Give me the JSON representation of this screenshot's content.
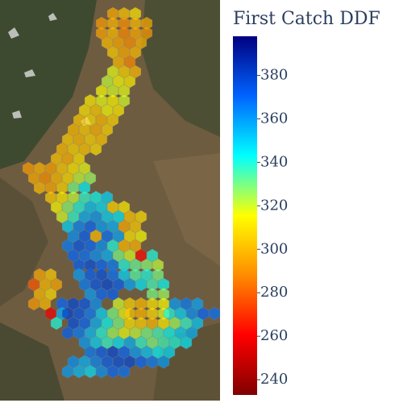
{
  "colorbar": {
    "title": "First Catch DDF",
    "range": [
      233,
      398
    ],
    "ticks": [
      240,
      260,
      280,
      300,
      320,
      340,
      360,
      380
    ],
    "colorscale": [
      "#800000",
      "#ff0000",
      "#ff8c00",
      "#ffff00",
      "#00ffff",
      "#0064ff",
      "#000080"
    ]
  },
  "hexbins": [
    [
      296,
      302,
      310
    ],
    [
      292,
      298,
      290,
      300,
      296
    ],
    [
      294,
      300,
      288,
      296,
      292
    ],
    [
      300,
      296,
      290,
      298
    ],
    [
      304,
      296,
      300
    ],
    [
      300,
      288
    ],
    [
      318,
      306,
      300
    ],
    [
      322,
      316,
      312
    ],
    [
      316,
      320,
      318
    ],
    [
      312,
      318,
      314,
      320
    ],
    [
      310,
      304,
      316,
      312
    ],
    [
      302,
      308,
      300,
      306
    ],
    [
      300,
      304,
      298,
      306
    ],
    [
      304,
      300,
      306,
      302
    ],
    [
      300,
      306,
      302,
      308
    ],
    [
      302,
      298,
      310
    ],
    [
      292,
      298,
      294,
      304,
      312,
      318
    ],
    [
      296,
      290,
      300,
      308,
      322,
      326
    ],
    [
      300,
      296,
      306,
      330,
      344
    ],
    [
      304,
      312,
      322,
      338,
      342,
      350
    ],
    [
      316,
      328,
      340,
      352,
      348,
      306,
      312
    ],
    [
      320,
      338,
      356,
      360,
      350,
      346,
      302,
      308
    ],
    [
      350,
      364,
      370,
      360,
      356,
      296,
      304
    ],
    [
      362,
      372,
      300,
      368,
      358,
      310,
      316
    ],
    [
      366,
      374,
      370,
      362,
      340,
      300,
      298
    ],
    [
      370,
      368,
      362,
      356,
      330,
      320,
      262,
      340
    ],
    [
      372,
      376,
      370,
      366,
      340,
      332,
      328,
      322
    ],
    [
      296,
      304
    ],
    [
      360,
      372,
      376,
      368,
      350,
      334,
      340,
      330
    ],
    [
      278,
      300,
      296
    ],
    [
      366,
      374,
      378,
      372,
      358,
      346,
      336,
      342
    ],
    [
      300,
      308
    ],
    [
      360,
      370,
      372
    ],
    [
      330,
      326
    ],
    [
      292,
      300
    ],
    [
      370,
      378,
      374,
      362
    ],
    [
      320,
      306,
      300,
      310,
      316
    ],
    [
      360,
      366,
      358
    ],
    [
      258,
      356
    ],
    [
      380,
      374,
      366,
      350,
      330,
      318
    ],
    [
      302,
      298,
      308,
      318
    ],
    [
      340,
      350,
      362,
      370,
      368
    ],
    [
      340
    ],
    [
      376,
      370,
      356,
      342,
      330,
      310,
      306,
      300,
      312,
      326,
      338,
      352
    ],
    [
      372,
      366,
      354,
      340,
      326,
      318,
      322,
      330,
      336,
      342,
      350,
      356
    ],
    [
      360,
      350,
      338,
      346,
      356,
      338,
      330,
      336,
      340,
      346
    ],
    [
      366,
      372,
      378,
      370,
      360,
      352,
      344,
      348
    ],
    [
      362,
      356,
      364,
      372,
      376,
      378,
      370,
      366,
      360
    ],
    [
      360,
      354,
      348,
      362,
      370,
      368
    ]
  ]
}
